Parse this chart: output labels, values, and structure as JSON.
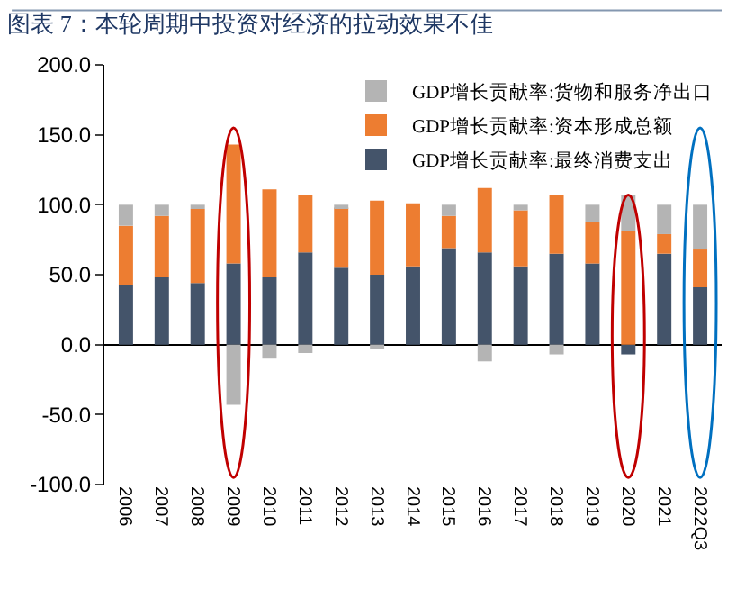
{
  "chart_data": {
    "type": "bar",
    "stacked": true,
    "title": "图表 7：本轮周期中投资对经济的拉动效果不佳",
    "categories": [
      "2006",
      "2007",
      "2008",
      "2009",
      "2010",
      "2011",
      "2012",
      "2013",
      "2014",
      "2015",
      "2016",
      "2017",
      "2018",
      "2019",
      "2020",
      "2021",
      "2022Q3"
    ],
    "series": [
      {
        "name": "GDP增长贡献率:最终消费支出",
        "color": "#44546a",
        "values": [
          43,
          48,
          44,
          58,
          48,
          66,
          55,
          50,
          56,
          69,
          66,
          56,
          65,
          58,
          -7,
          65,
          41
        ]
      },
      {
        "name": "GDP增长贡献率:资本形成总额",
        "color": "#ed7d31",
        "values": [
          42,
          44,
          53,
          85,
          63,
          41,
          43,
          53,
          45,
          23,
          46,
          40,
          42,
          30,
          81,
          14,
          27
        ]
      },
      {
        "name": "GDP增长贡献率:货物和服务净出口",
        "color": "#b4b4b4",
        "values": [
          15,
          8,
          3,
          -43,
          -10,
          -6,
          2,
          -3,
          0,
          8,
          -12,
          4,
          -7,
          12,
          26,
          21,
          32
        ]
      }
    ],
    "ylim": [
      -100,
      200
    ],
    "yticks": [
      {
        "value": -100,
        "label": "-100.0"
      },
      {
        "value": -50,
        "label": "-50.0"
      },
      {
        "value": 0,
        "label": "0.0"
      },
      {
        "value": 50,
        "label": "50.0"
      },
      {
        "value": 100,
        "label": "100.0"
      },
      {
        "value": 150,
        "label": "150.0"
      },
      {
        "value": 200,
        "label": "200.0"
      }
    ],
    "legend": "top right"
  }
}
